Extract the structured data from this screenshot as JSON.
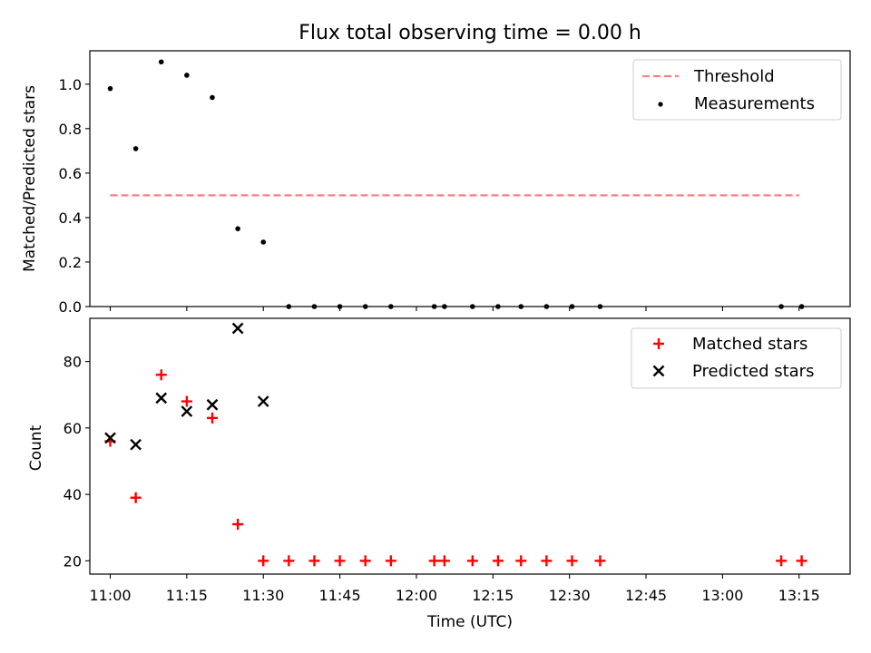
{
  "chart_data": {
    "title": "Flux total observing time = 0.00 h",
    "xlabel": "Time (UTC)",
    "x_range_minutes": [
      656,
      805
    ],
    "x_ticks": [
      {
        "minute": 660,
        "label": "11:00"
      },
      {
        "minute": 675,
        "label": "11:15"
      },
      {
        "minute": 690,
        "label": "11:30"
      },
      {
        "minute": 705,
        "label": "11:45"
      },
      {
        "minute": 720,
        "label": "12:00"
      },
      {
        "minute": 735,
        "label": "12:15"
      },
      {
        "minute": 750,
        "label": "12:30"
      },
      {
        "minute": 765,
        "label": "12:45"
      },
      {
        "minute": 780,
        "label": "13:00"
      },
      {
        "minute": 795,
        "label": "13:15"
      }
    ],
    "panels": [
      {
        "type": "scatter",
        "ylabel": "Matched/Predicted stars",
        "ylim": [
          0,
          1.15
        ],
        "yticks": [
          0.0,
          0.2,
          0.4,
          0.6,
          0.8,
          1.0
        ],
        "ytick_labels": [
          "0.0",
          "0.2",
          "0.4",
          "0.6",
          "0.8",
          "1.0"
        ],
        "legend_position": "top-right",
        "threshold": {
          "name": "Threshold",
          "value": 0.5,
          "x_start": 660,
          "x_end": 795,
          "color": "#ff7f7f"
        },
        "series": [
          {
            "name": "Measurements",
            "marker": "dot",
            "color": "#000000",
            "x": [
              660,
              665,
              670,
              675,
              680,
              685,
              690,
              695,
              700,
              705,
              710,
              715,
              723.5,
              725.5,
              731,
              736,
              740.5,
              745.5,
              750.5,
              756,
              791.5,
              795.5
            ],
            "values": [
              0.98,
              0.71,
              1.1,
              1.04,
              0.94,
              0.35,
              0.29,
              0,
              0,
              0,
              0,
              0,
              0,
              0,
              0,
              0,
              0,
              0,
              0,
              0,
              0,
              0
            ]
          }
        ]
      },
      {
        "type": "scatter",
        "ylabel": "Count",
        "ylim": [
          16,
          93
        ],
        "yticks": [
          20,
          40,
          60,
          80
        ],
        "ytick_labels": [
          "20",
          "40",
          "60",
          "80"
        ],
        "legend_position": "top-right",
        "series": [
          {
            "name": "Matched stars",
            "marker": "plus",
            "color": "#ff0000",
            "x": [
              660,
              665,
              670,
              675,
              680,
              685,
              690,
              695,
              700,
              705,
              710,
              715,
              723.5,
              725.5,
              731,
              736,
              740.5,
              745.5,
              750.5,
              756,
              791.5,
              795.5
            ],
            "values": [
              56,
              39,
              76,
              68,
              63,
              31,
              20,
              20,
              20,
              20,
              20,
              20,
              20,
              20,
              20,
              20,
              20,
              20,
              20,
              20,
              20,
              20
            ]
          },
          {
            "name": "Predicted stars",
            "marker": "x",
            "color": "#000000",
            "x": [
              660,
              665,
              670,
              675,
              680,
              685,
              690
            ],
            "values": [
              57,
              55,
              69,
              65,
              67,
              90,
              68
            ]
          }
        ]
      }
    ]
  }
}
